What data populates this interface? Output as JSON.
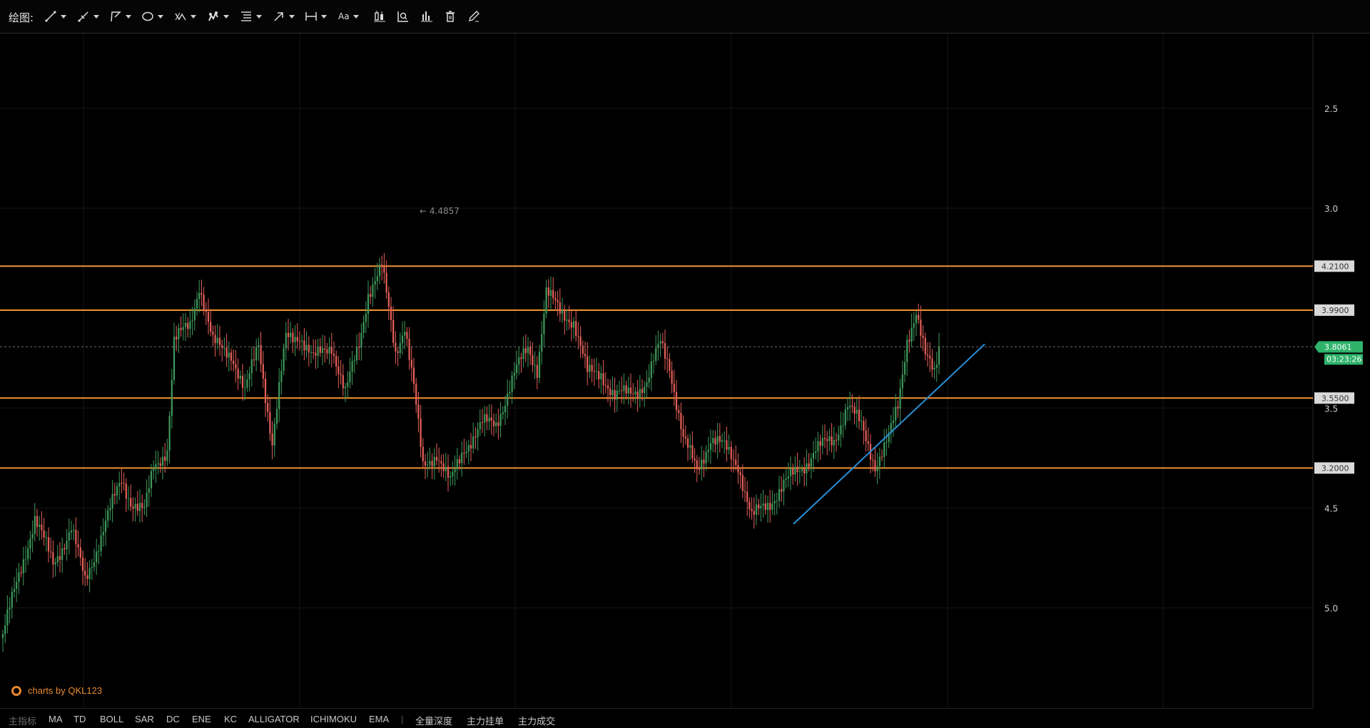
{
  "toolbar": {
    "label": "绘图:",
    "text_tool_label": "Aa",
    "tools": [
      "line-tool-icon",
      "ray-tool-icon",
      "polyline-tool-icon",
      "ellipse-tool-icon",
      "pattern-tool-icon",
      "brush-tool-icon",
      "fib-tool-icon",
      "arrow-tool-icon",
      "measure-tool-icon",
      "text-tool-icon",
      "candle-style-icon",
      "indicator-chart-icon",
      "bar-chart-icon",
      "trash-icon",
      "edit-pen-icon"
    ]
  },
  "chart": {
    "peak_label": "← 4.4857",
    "y_ticks": [
      "5.0",
      "4.5",
      "3.5",
      "3.0",
      "2.5"
    ],
    "h_levels": [
      {
        "price": 4.21,
        "label": "4.2100"
      },
      {
        "price": 3.99,
        "label": "3.9900"
      },
      {
        "price": 3.55,
        "label": "3.5500"
      },
      {
        "price": 3.2,
        "label": "3.2000"
      }
    ],
    "current_price": "3.8061",
    "countdown": "03:23:26",
    "colors": {
      "up": "#3e9a5b",
      "down": "#e8605a",
      "level": "#f0922e",
      "trend": "#2a8fd6",
      "badge": "#2fb36b"
    }
  },
  "chart_data": {
    "type": "candlestick",
    "title": "",
    "ylim": [
      2.0,
      5.3
    ],
    "y_ticks": [
      2.5,
      3.0,
      3.5,
      4.5,
      5.0
    ],
    "price_levels": [
      4.21,
      3.99,
      3.55,
      3.2
    ],
    "current_price": 3.8061,
    "high_marker": 4.4857,
    "trendline": {
      "from_price": 2.92,
      "to_price": 3.82
    },
    "anchors": [
      [
        0,
        2.37
      ],
      [
        8,
        2.7
      ],
      [
        14,
        2.95
      ],
      [
        22,
        2.72
      ],
      [
        30,
        2.9
      ],
      [
        36,
        2.63
      ],
      [
        45,
        2.93
      ],
      [
        52,
        3.14
      ],
      [
        56,
        3.04
      ],
      [
        62,
        2.98
      ],
      [
        66,
        3.2
      ],
      [
        72,
        3.3
      ],
      [
        75,
        3.83
      ],
      [
        82,
        3.92
      ],
      [
        86,
        4.12
      ],
      [
        92,
        3.82
      ],
      [
        100,
        3.78
      ],
      [
        106,
        3.57
      ],
      [
        112,
        3.83
      ],
      [
        118,
        3.32
      ],
      [
        124,
        3.85
      ],
      [
        130,
        3.87
      ],
      [
        136,
        3.74
      ],
      [
        144,
        3.82
      ],
      [
        150,
        3.57
      ],
      [
        156,
        3.82
      ],
      [
        160,
        4.08
      ],
      [
        166,
        4.2
      ],
      [
        172,
        3.78
      ],
      [
        176,
        3.92
      ],
      [
        180,
        3.6
      ],
      [
        184,
        3.2
      ],
      [
        190,
        3.28
      ],
      [
        196,
        3.12
      ],
      [
        202,
        3.3
      ],
      [
        210,
        3.42
      ],
      [
        216,
        3.42
      ],
      [
        224,
        3.67
      ],
      [
        230,
        3.8
      ],
      [
        234,
        3.7
      ],
      [
        238,
        4.08
      ],
      [
        244,
        3.98
      ],
      [
        250,
        3.94
      ],
      [
        256,
        3.67
      ],
      [
        262,
        3.68
      ],
      [
        268,
        3.55
      ],
      [
        276,
        3.59
      ],
      [
        282,
        3.62
      ],
      [
        288,
        3.83
      ],
      [
        292,
        3.72
      ],
      [
        298,
        3.34
      ],
      [
        304,
        3.19
      ],
      [
        310,
        3.35
      ],
      [
        316,
        3.3
      ],
      [
        322,
        3.22
      ],
      [
        328,
        2.95
      ],
      [
        336,
        3.03
      ],
      [
        342,
        3.12
      ],
      [
        350,
        3.2
      ],
      [
        356,
        3.3
      ],
      [
        364,
        3.33
      ],
      [
        370,
        3.53
      ],
      [
        376,
        3.4
      ],
      [
        382,
        3.22
      ],
      [
        388,
        3.35
      ],
      [
        392,
        3.5
      ],
      [
        396,
        3.85
      ],
      [
        400,
        3.98
      ],
      [
        404,
        3.75
      ],
      [
        408,
        3.68
      ],
      [
        410,
        3.81
      ]
    ]
  },
  "bottom": {
    "main_label": "主指标",
    "indicators": [
      "MA",
      "TD",
      "BOLL",
      "SAR",
      "DC",
      "ENE",
      "KC",
      "ALLIGATOR",
      "ICHIMOKU",
      "EMA"
    ],
    "sep": "|",
    "extras": [
      "全量深度",
      "主力挂单",
      "主力成交"
    ]
  },
  "watermark": "charts by QKL123"
}
